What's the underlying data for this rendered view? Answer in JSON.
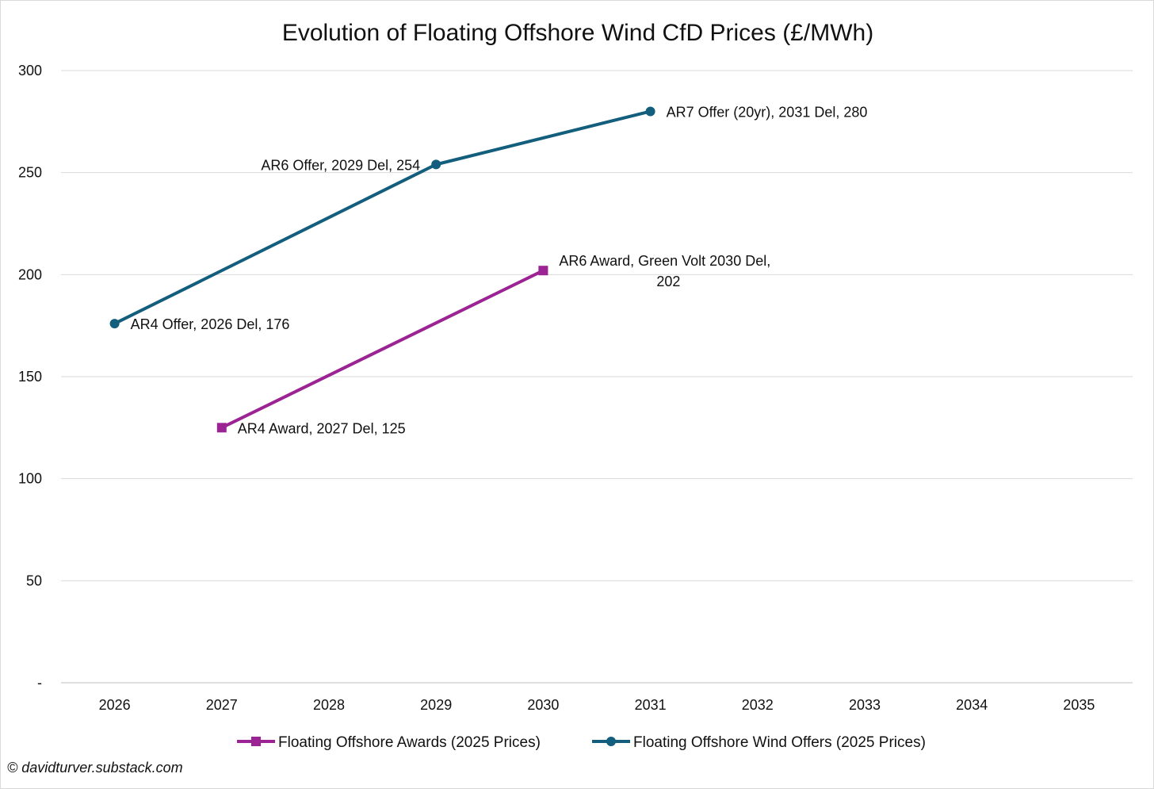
{
  "chart_data": {
    "type": "line",
    "title": "Evolution of Floating Offshore Wind CfD Prices (£/MWh)",
    "xlabel": "",
    "ylabel": "",
    "categories": [
      2026,
      2027,
      2028,
      2029,
      2030,
      2031,
      2032,
      2033,
      2034,
      2035
    ],
    "ylim": [
      0,
      300
    ],
    "y_ticks": [
      {
        "value": 0,
        "label": "-"
      },
      {
        "value": 50,
        "label": "50"
      },
      {
        "value": 100,
        "label": "100"
      },
      {
        "value": 150,
        "label": "150"
      },
      {
        "value": 200,
        "label": "200"
      },
      {
        "value": 250,
        "label": "250"
      },
      {
        "value": 300,
        "label": "300"
      }
    ],
    "grid": true,
    "legend_position": "bottom",
    "series": [
      {
        "name": "Floating Offshore Awards (2025 Prices)",
        "color": "#9b2393",
        "marker": "square",
        "points": [
          {
            "x": 2027,
            "y": 125,
            "label_lines": [
              "AR4 Award, 2027 Del,  125"
            ]
          },
          {
            "x": 2030,
            "y": 202,
            "label_lines": [
              "AR6 Award, Green Volt 2030 Del,",
              "202"
            ]
          }
        ]
      },
      {
        "name": "Floating Offshore Wind Offers (2025 Prices)",
        "color": "#135e7c",
        "marker": "circle",
        "points": [
          {
            "x": 2026,
            "y": 176,
            "label_lines": [
              "AR4 Offer, 2026 Del,  176"
            ]
          },
          {
            "x": 2029,
            "y": 254,
            "label_lines": [
              "AR6 Offer, 2029 Del,  254"
            ]
          },
          {
            "x": 2031,
            "y": 280,
            "label_lines": [
              "AR7 Offer (20yr), 2031 Del,  280"
            ]
          }
        ]
      }
    ]
  },
  "footer": {
    "copyright": "© davidturver.substack.com"
  }
}
